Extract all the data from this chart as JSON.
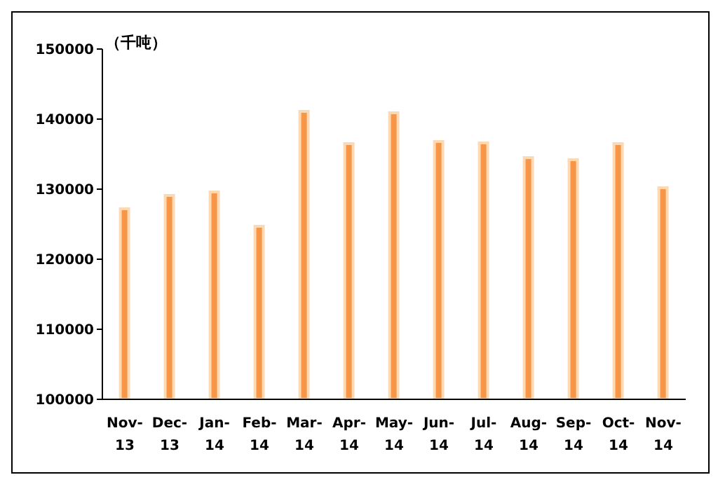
{
  "chart_data": {
    "type": "bar",
    "ylabel": "（千吨）",
    "categories": [
      "Nov-13",
      "Dec-13",
      "Jan-14",
      "Feb-14",
      "Mar-14",
      "Apr-14",
      "May-14",
      "Jun-14",
      "Jul-14",
      "Aug-14",
      "Sep-14",
      "Oct-14",
      "Nov-14"
    ],
    "values": [
      127200,
      129100,
      129600,
      124700,
      141100,
      136500,
      140900,
      136800,
      136600,
      134500,
      134200,
      136500,
      130200
    ],
    "color": "#f79646",
    "ylim": [
      100000,
      150000
    ],
    "yticks": [
      100000,
      110000,
      120000,
      130000,
      140000,
      150000
    ],
    "grid": false,
    "legend": false
  }
}
